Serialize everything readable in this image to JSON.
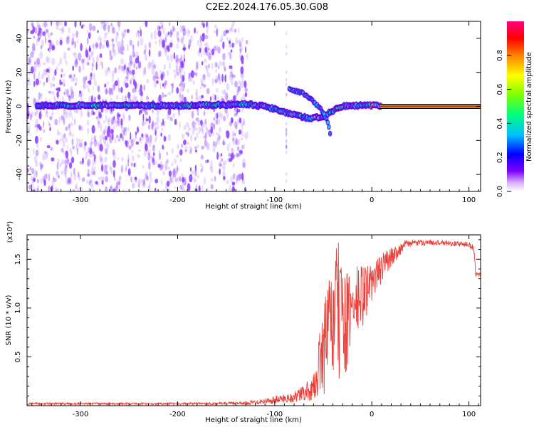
{
  "title": "C2E2.2024.176.05.30.G08",
  "chart_data": [
    {
      "type": "heatmap",
      "xlabel": "Height of straight line (km)",
      "ylabel": "Frequency (Hz)",
      "xlim": [
        -355,
        112
      ],
      "ylim": [
        -50,
        50
      ],
      "x_ticks": [
        -300,
        -200,
        -100,
        0,
        100
      ],
      "x_tick_labels": [
        "-300",
        "-200",
        "-100",
        "0",
        "100"
      ],
      "y_ticks": [
        -40,
        -20,
        0,
        20,
        40
      ],
      "y_tick_labels": [
        "-40",
        "-20",
        "0",
        "20",
        "40"
      ],
      "noise_region_x": [
        -355,
        -128
      ],
      "main_track": [
        {
          "x": -330,
          "y": 0.5
        },
        {
          "x": -280,
          "y": 0.5
        },
        {
          "x": -230,
          "y": 0.5
        },
        {
          "x": -180,
          "y": 0.5
        },
        {
          "x": -150,
          "y": 1.0
        },
        {
          "x": -130,
          "y": 1.5
        },
        {
          "x": -110,
          "y": 0.0
        },
        {
          "x": -95,
          "y": -2.5
        },
        {
          "x": -80,
          "y": -5.0
        },
        {
          "x": -65,
          "y": -7.0
        },
        {
          "x": -50,
          "y": -6.0
        },
        {
          "x": -42,
          "y": -3.0
        },
        {
          "x": -30,
          "y": 0.0
        },
        {
          "x": -15,
          "y": 0.5
        },
        {
          "x": 5,
          "y": 0.5
        },
        {
          "x": 112,
          "y": 0.0
        }
      ],
      "secondary_track": [
        {
          "x": -85,
          "y": 10
        },
        {
          "x": -72,
          "y": 8
        },
        {
          "x": -62,
          "y": 4
        },
        {
          "x": -52,
          "y": -2
        },
        {
          "x": -46,
          "y": -8
        },
        {
          "x": -42,
          "y": -18
        }
      ],
      "colorbar": {
        "label": "Normalized spectral amplitude",
        "ticks": [
          0.0,
          0.2,
          0.4,
          0.6,
          0.8
        ],
        "tick_labels": [
          "0.0",
          "0.2",
          "0.4",
          "0.6",
          "0.8"
        ],
        "range": [
          0,
          1
        ],
        "colors": [
          "#ffffff",
          "#d9b3ff",
          "#8000ff",
          "#0000ff",
          "#00bfff",
          "#00ff80",
          "#80ff00",
          "#ffff00",
          "#ff8000",
          "#ff0000",
          "#ff0080"
        ]
      },
      "colors": {
        "noise": "#8b3dff",
        "track_low": "#5a00e0",
        "track_mid": "#00d0ff",
        "track_high": "#ff1a1a"
      }
    },
    {
      "type": "line",
      "xlabel": "Height of straight line (km)",
      "ylabel": "SNR (10 * v/v)",
      "y_multiplier_label": "(x10⁴)",
      "xlim": [
        -355,
        112
      ],
      "ylim": [
        0.0,
        1.75
      ],
      "x_ticks": [
        -300,
        -200,
        -100,
        0,
        100
      ],
      "x_tick_labels": [
        "-300",
        "-200",
        "-100",
        "0",
        "100"
      ],
      "y_ticks": [
        0.5,
        1.0,
        1.5
      ],
      "y_tick_labels": [
        "0.5",
        "1.0",
        "1.5"
      ],
      "series": [
        {
          "color": "#e8403a",
          "envelope": [
            {
              "x": -355,
              "lo": 0.01,
              "hi": 0.03
            },
            {
              "x": -200,
              "lo": 0.01,
              "hi": 0.03
            },
            {
              "x": -130,
              "lo": 0.01,
              "hi": 0.04
            },
            {
              "x": -100,
              "lo": 0.02,
              "hi": 0.1
            },
            {
              "x": -80,
              "lo": 0.03,
              "hi": 0.14
            },
            {
              "x": -60,
              "lo": 0.05,
              "hi": 0.3
            },
            {
              "x": -48,
              "lo": 0.1,
              "hi": 1.15
            },
            {
              "x": -35,
              "lo": 0.15,
              "hi": 1.7
            },
            {
              "x": -25,
              "lo": 0.3,
              "hi": 1.35
            },
            {
              "x": -15,
              "lo": 0.6,
              "hi": 1.45
            },
            {
              "x": 0,
              "lo": 1.05,
              "hi": 1.45
            },
            {
              "x": 15,
              "lo": 1.35,
              "hi": 1.6
            },
            {
              "x": 35,
              "lo": 1.62,
              "hi": 1.7
            },
            {
              "x": 60,
              "lo": 1.65,
              "hi": 1.7
            },
            {
              "x": 100,
              "lo": 1.62,
              "hi": 1.68
            },
            {
              "x": 105,
              "lo": 1.58,
              "hi": 1.65
            },
            {
              "x": 107,
              "lo": 1.32,
              "hi": 1.37
            },
            {
              "x": 112,
              "lo": 1.32,
              "hi": 1.36
            }
          ]
        }
      ]
    }
  ]
}
